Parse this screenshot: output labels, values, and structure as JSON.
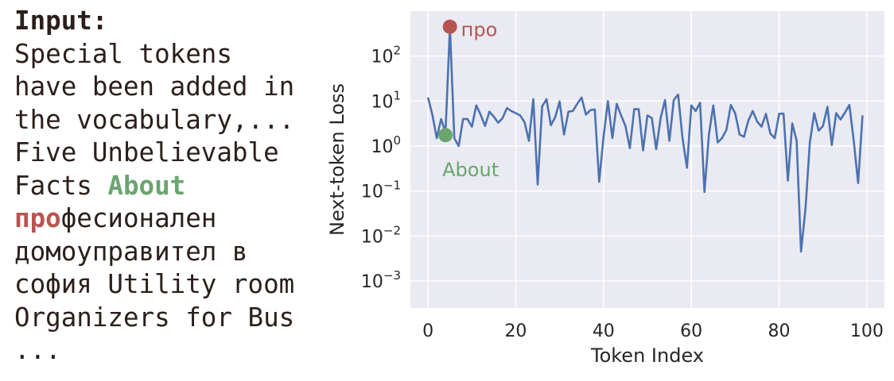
{
  "text_panel": {
    "heading": "Input:",
    "lines": [
      "Special tokens",
      "have been added in",
      "the vocabulary,...",
      "Five Unbelievable"
    ],
    "line_facts_prefix": "Facts ",
    "highlight_green": "About",
    "highlight_red": "про",
    "line_suffix_red": "фесионален",
    "lines_after": [
      "домоуправител в",
      "софия Utility room",
      "Organizers for Bus",
      "..."
    ]
  },
  "colors": {
    "line": "#4c72b0",
    "plot_bg": "#eaeaf2",
    "grid": "#ffffff",
    "highlight_red": "#b85450",
    "highlight_green": "#6aa56f"
  },
  "chart_data": {
    "type": "line",
    "xlabel": "Token Index",
    "ylabel": "Next-token Loss",
    "yscale": "log",
    "xlim": [
      -4,
      104
    ],
    "ylim_exp": [
      -3.6,
      3.0
    ],
    "xticks": [
      0,
      20,
      40,
      60,
      80,
      100
    ],
    "yticks_exp": [
      -3,
      -2,
      -1,
      0,
      1,
      2
    ],
    "grid": true,
    "x": [
      0,
      1,
      2,
      3,
      4,
      5,
      6,
      7,
      8,
      9,
      10,
      11,
      12,
      13,
      14,
      15,
      16,
      17,
      18,
      19,
      20,
      21,
      22,
      23,
      24,
      25,
      26,
      27,
      28,
      29,
      30,
      31,
      32,
      33,
      34,
      35,
      36,
      37,
      38,
      39,
      40,
      41,
      42,
      43,
      44,
      45,
      46,
      47,
      48,
      49,
      50,
      51,
      52,
      53,
      54,
      55,
      56,
      57,
      58,
      59,
      60,
      61,
      62,
      63,
      64,
      65,
      66,
      67,
      68,
      69,
      70,
      71,
      72,
      73,
      74,
      75,
      76,
      77,
      78,
      79,
      80,
      81,
      82,
      83,
      84,
      85,
      86,
      87,
      88,
      89,
      90,
      91,
      92,
      93,
      94,
      95,
      96,
      97,
      98,
      99
    ],
    "values": [
      12,
      5,
      1.5,
      4,
      2,
      450,
      1.5,
      1,
      4,
      4,
      2.7,
      8,
      5,
      2.8,
      5.8,
      4.5,
      3.3,
      4.2,
      7,
      6,
      5.4,
      4.8,
      3.4,
      1.3,
      11,
      0.14,
      7.6,
      11,
      2.9,
      4.4,
      9.8,
      1.8,
      5.8,
      6,
      8.7,
      12,
      5,
      6.3,
      6.5,
      0.16,
      1.6,
      10,
      1.5,
      8.7,
      4.8,
      2.8,
      0.9,
      6.6,
      6.6,
      0.8,
      4.8,
      4.2,
      0.85,
      4.2,
      10.5,
      1.3,
      10.5,
      14,
      1.5,
      0.33,
      8,
      6,
      9.2,
      0.095,
      1.8,
      8,
      1.2,
      1.5,
      2.3,
      8.2,
      5.3,
      1.8,
      1.6,
      3.7,
      6,
      3.5,
      2.7,
      5.2,
      1.9,
      1.5,
      5.2,
      5.3,
      0.17,
      3.2,
      1.3,
      0.0045,
      0.04,
      1.2,
      5.4,
      2.2,
      2.8,
      7.4,
      1.05,
      5.4,
      3.9,
      5.5,
      8.2,
      1.3,
      0.15,
      4.8
    ],
    "annotations": [
      {
        "label": "про",
        "x": 5,
        "y": 450,
        "color": "#b85450"
      },
      {
        "label": "About",
        "x": 4,
        "y": 1.75,
        "color": "#6aa56f"
      }
    ]
  }
}
